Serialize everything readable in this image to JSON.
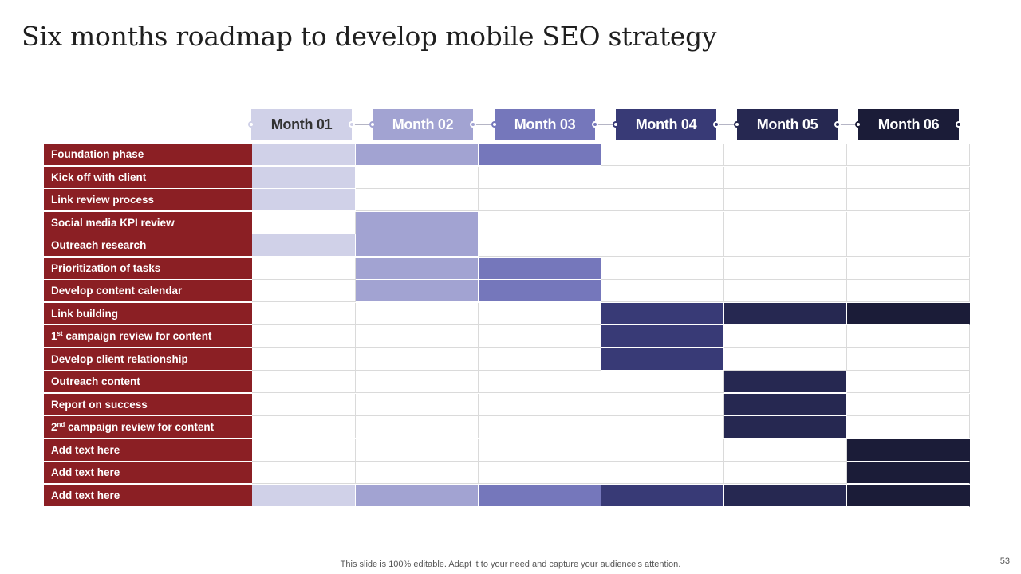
{
  "title": "Six months roadmap to develop mobile SEO strategy",
  "months": [
    {
      "label": "Month 01",
      "bg": "#d0d1e8",
      "fg": "#333333"
    },
    {
      "label": "Month 02",
      "bg": "#a2a3d2",
      "fg": "#ffffff"
    },
    {
      "label": "Month 03",
      "bg": "#7577bb",
      "fg": "#ffffff"
    },
    {
      "label": "Month 04",
      "bg": "#383a76",
      "fg": "#ffffff"
    },
    {
      "label": "Month 05",
      "bg": "#262851",
      "fg": "#ffffff"
    },
    {
      "label": "Month 06",
      "bg": "#1b1c38",
      "fg": "#ffffff"
    }
  ],
  "colors": {
    "label_bg": "#8b1f24",
    "line": "#b5b5c5"
  },
  "tasks": [
    {
      "label": "Foundation phase",
      "sup": "",
      "rest": "",
      "months": [
        1,
        2,
        3
      ]
    },
    {
      "label": "Kick off with client",
      "sup": "",
      "rest": "",
      "months": [
        1
      ]
    },
    {
      "label": "Link review process",
      "sup": "",
      "rest": "",
      "months": [
        1
      ]
    },
    {
      "label": "Social media KPI review",
      "sup": "",
      "rest": "",
      "months": [
        2
      ]
    },
    {
      "label": "Outreach research",
      "sup": "",
      "rest": "",
      "months": [
        1,
        2
      ]
    },
    {
      "label": "Prioritization of tasks",
      "sup": "",
      "rest": "",
      "months": [
        2,
        3
      ]
    },
    {
      "label": "Develop content calendar",
      "sup": "",
      "rest": "",
      "months": [
        2,
        3
      ]
    },
    {
      "label": "Link building",
      "sup": "",
      "rest": "",
      "months": [
        4,
        5,
        6
      ]
    },
    {
      "label": "1",
      "sup": "st",
      "rest": " campaign review for content",
      "months": [
        4
      ]
    },
    {
      "label": "Develop client relationship",
      "sup": "",
      "rest": "",
      "months": [
        4
      ]
    },
    {
      "label": "Outreach content",
      "sup": "",
      "rest": "",
      "months": [
        5
      ]
    },
    {
      "label": "Report on success",
      "sup": "",
      "rest": "",
      "months": [
        5
      ]
    },
    {
      "label": "2",
      "sup": "nd",
      "rest": " campaign review for content",
      "months": [
        5
      ]
    },
    {
      "label": "Add text here",
      "sup": "",
      "rest": "",
      "months": [
        6
      ]
    },
    {
      "label": "Add text here",
      "sup": "",
      "rest": "",
      "months": [
        6
      ]
    },
    {
      "label": "Add text here",
      "sup": "",
      "rest": "",
      "months": [
        1,
        2,
        3,
        4,
        5,
        6
      ]
    }
  ],
  "footer": "This slide is 100% editable. Adapt it to your need and capture your audience’s attention.",
  "page_number": "53"
}
